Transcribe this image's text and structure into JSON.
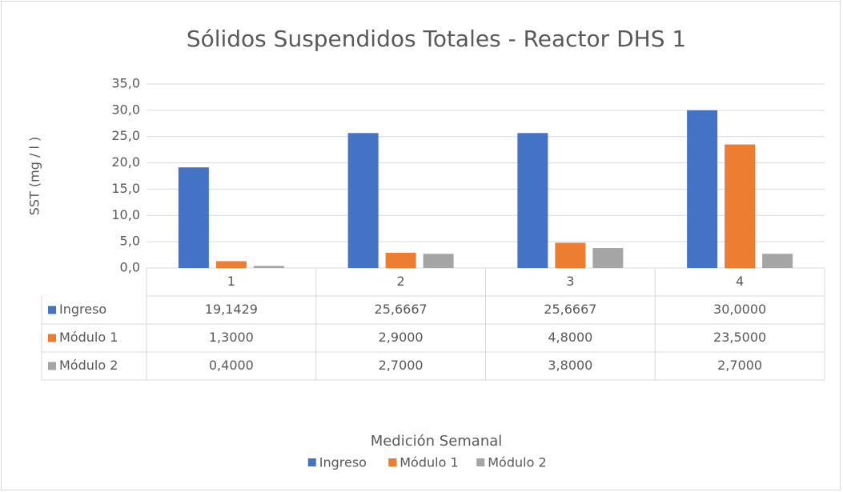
{
  "chart_data": {
    "type": "bar",
    "title": "Sólidos Suspendidos Totales - Reactor DHS 1",
    "x_label": "Medición Semanal",
    "y_label": "SST (mg / l )",
    "categories": [
      "1",
      "2",
      "3",
      "4"
    ],
    "series": [
      {
        "name": "Ingreso",
        "color": "#4472c4",
        "values": [
          19.1429,
          25.6667,
          25.6667,
          30.0
        ],
        "value_labels": [
          "19,1429",
          "25,6667",
          "25,6667",
          "30,0000"
        ]
      },
      {
        "name": "Módulo 1",
        "color": "#ed7d31",
        "values": [
          1.3,
          2.9,
          4.8,
          23.5
        ],
        "value_labels": [
          "1,3000",
          "2,9000",
          "4,8000",
          "23,5000"
        ]
      },
      {
        "name": "Módulo 2",
        "color": "#a5a5a5",
        "values": [
          0.4,
          2.7,
          3.8,
          2.7
        ],
        "value_labels": [
          "0,4000",
          "2,7000",
          "3,8000",
          "2,7000"
        ]
      }
    ],
    "ylim": [
      0,
      35
    ],
    "yticks": [
      {
        "value": 0,
        "label": "0,0"
      },
      {
        "value": 5,
        "label": "5,0"
      },
      {
        "value": 10,
        "label": "10,0"
      },
      {
        "value": 15,
        "label": "15,0"
      },
      {
        "value": 20,
        "label": "20,0"
      },
      {
        "value": 25,
        "label": "25,0"
      },
      {
        "value": 30,
        "label": "30,0"
      },
      {
        "value": 35,
        "label": "35,0"
      }
    ],
    "grid": true,
    "legend": "bottom"
  }
}
